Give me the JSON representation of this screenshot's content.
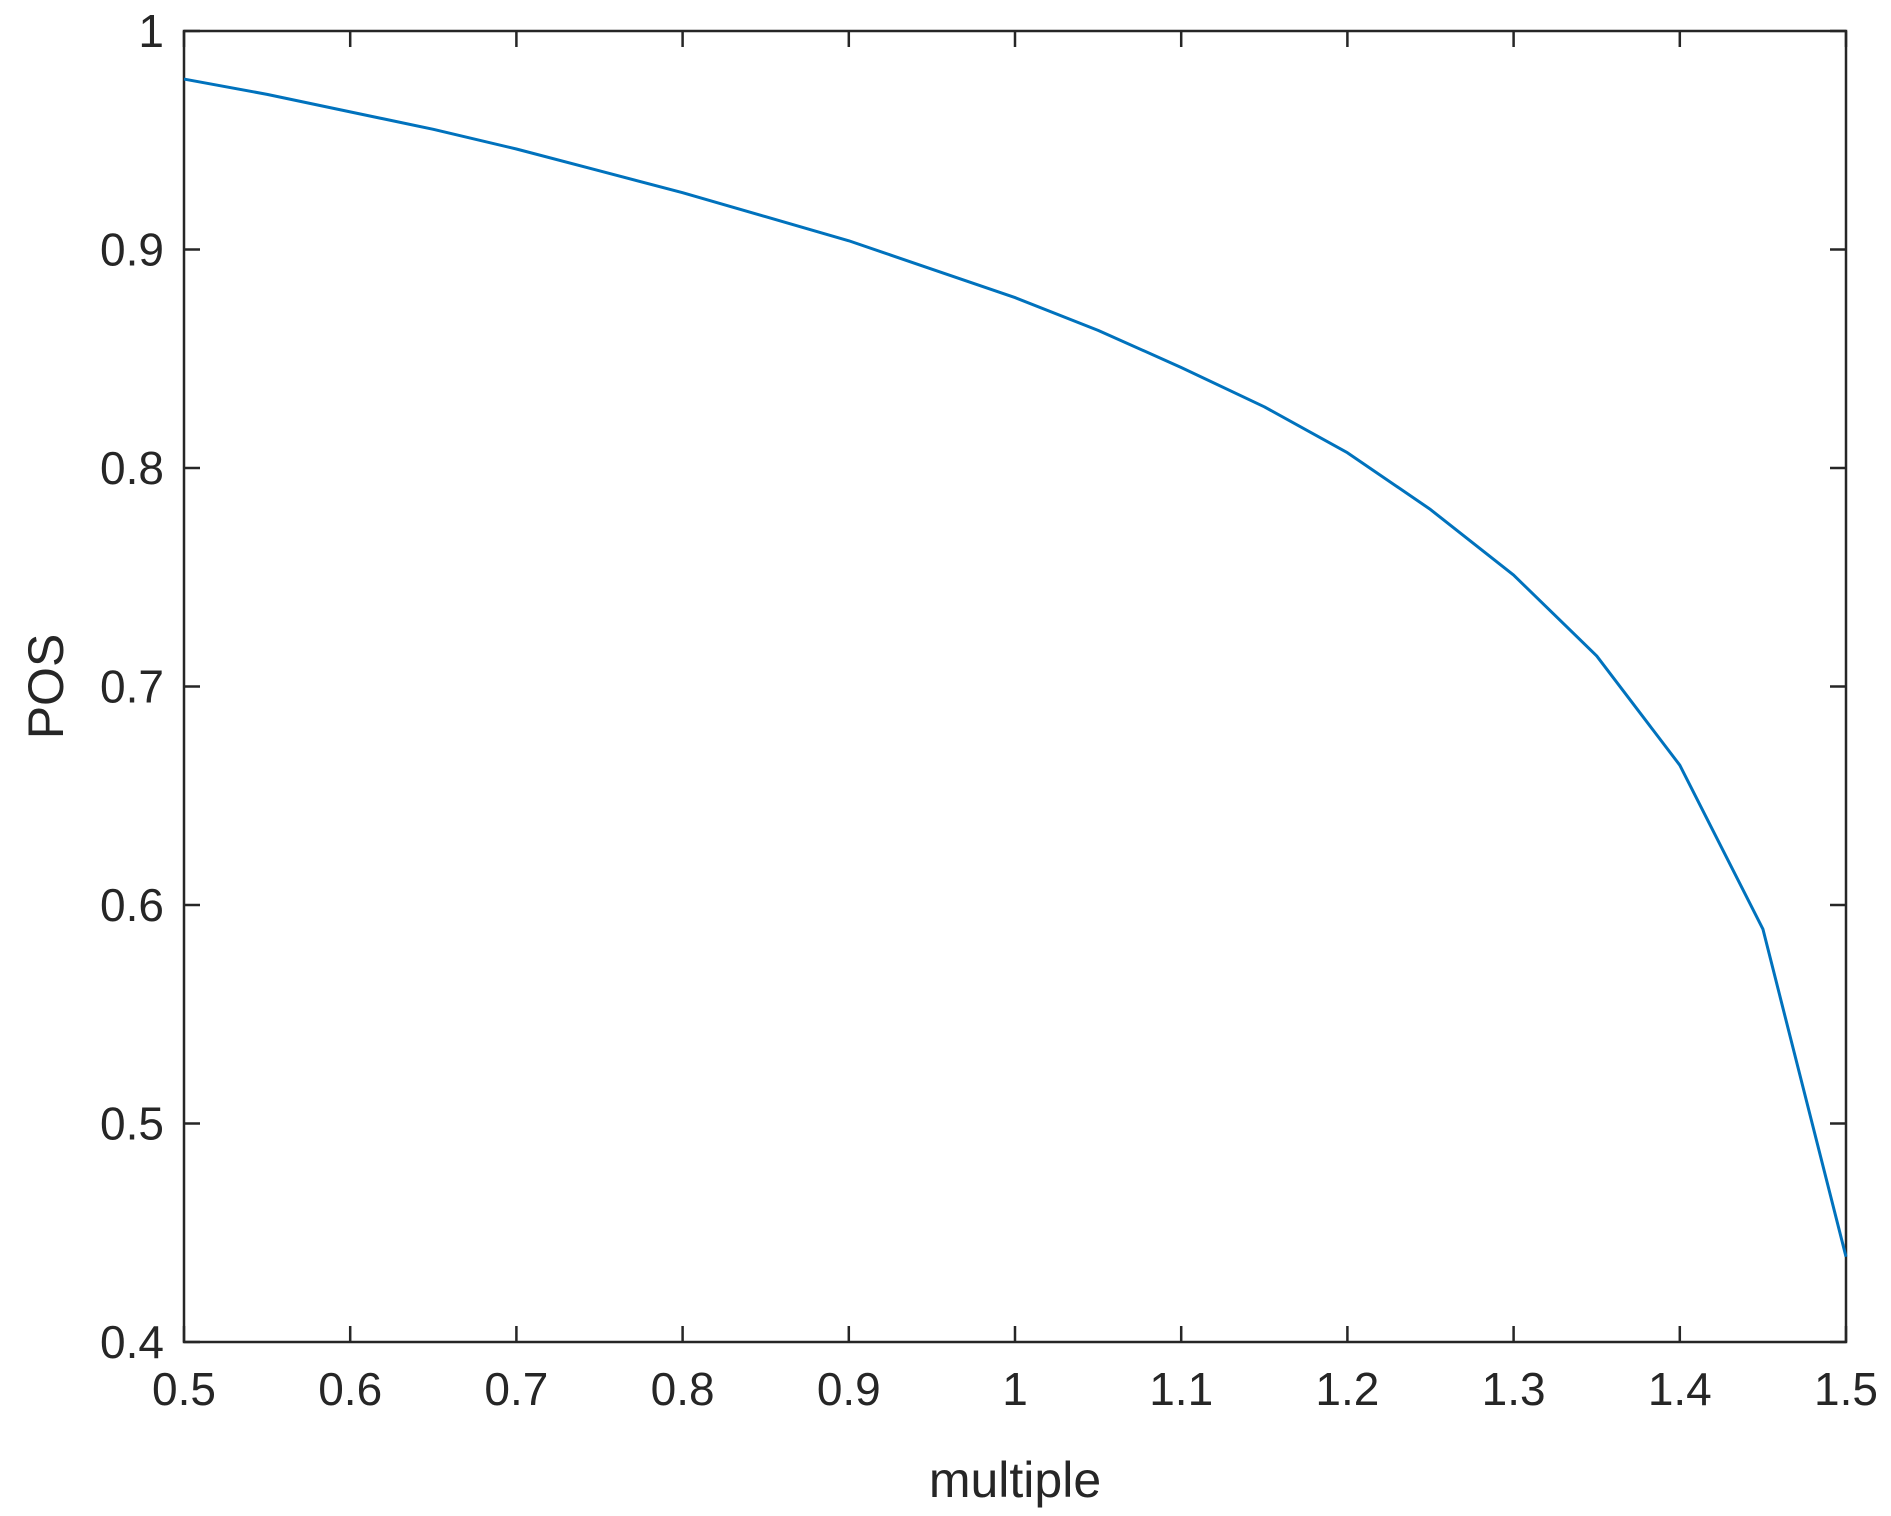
{
  "chart_data": {
    "type": "line",
    "title": "",
    "xlabel": "multiple",
    "ylabel": "POS",
    "xlim": [
      0.5,
      1.5
    ],
    "ylim": [
      0.4,
      1
    ],
    "xticks": [
      0.5,
      0.6,
      0.7,
      0.8,
      0.9,
      1,
      1.1,
      1.2,
      1.3,
      1.4,
      1.5
    ],
    "xtick_labels": [
      "0.5",
      "0.6",
      "0.7",
      "0.8",
      "0.9",
      "1",
      "1.1",
      "1.2",
      "1.3",
      "1.4",
      "1.5"
    ],
    "yticks": [
      0.4,
      0.5,
      0.6,
      0.7,
      0.8,
      0.9,
      1
    ],
    "ytick_labels": [
      "0.4",
      "0.5",
      "0.6",
      "0.7",
      "0.8",
      "0.9",
      "1"
    ],
    "grid": false,
    "box": true,
    "series": [
      {
        "color": "#0072BD",
        "x": [
          0.5,
          0.55,
          0.6,
          0.65,
          0.7,
          0.75,
          0.8,
          0.85,
          0.9,
          0.95,
          1.0,
          1.05,
          1.1,
          1.15,
          1.2,
          1.25,
          1.3,
          1.35,
          1.4,
          1.45,
          1.5
        ],
        "y": [
          0.978,
          0.971,
          0.963,
          0.955,
          0.946,
          0.936,
          0.926,
          0.915,
          0.904,
          0.891,
          0.878,
          0.863,
          0.846,
          0.828,
          0.807,
          0.781,
          0.751,
          0.714,
          0.664,
          0.589,
          0.439
        ]
      }
    ]
  }
}
